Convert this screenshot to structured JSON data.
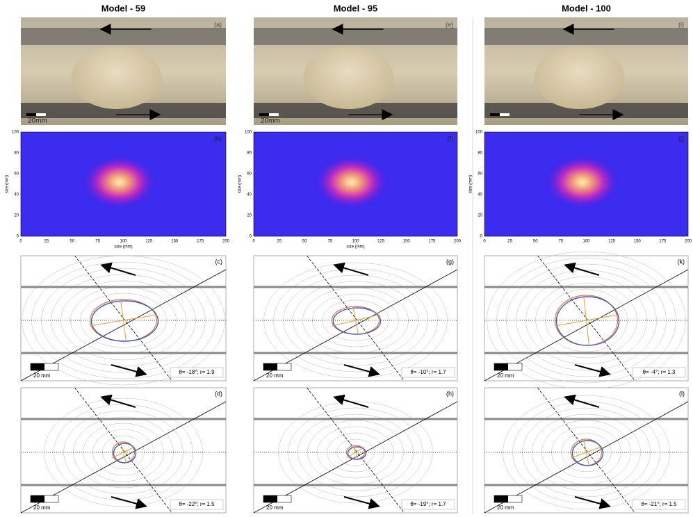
{
  "columns": [
    {
      "title": "Model - 59",
      "photo": {
        "letter": "(a)",
        "scale": "20mm"
      },
      "map": {
        "letter": "(b)",
        "xlabel": "size (mm)",
        "ylabel": "size (mm)"
      },
      "panels": [
        {
          "letter": "(c)",
          "scale": "20 mm",
          "annotation": "θ= -18°; r= 1.9"
        },
        {
          "letter": "(d)",
          "scale": "20 mm",
          "annotation": "θ= -22°; r= 1.5"
        }
      ]
    },
    {
      "title": "Model - 95",
      "photo": {
        "letter": "(e)",
        "scale": "20mm"
      },
      "map": {
        "letter": "(f)",
        "xlabel": "size (mm)",
        "ylabel": "size (mm)"
      },
      "panels": [
        {
          "letter": "(g)",
          "scale": "20 mm",
          "annotation": "θ= -10°; r= 1.7"
        },
        {
          "letter": "(h)",
          "scale": "20 mm",
          "annotation": "θ= -19°; r= 1.7"
        }
      ]
    },
    {
      "title": "Model - 100",
      "photo": {
        "letter": "(i)"
      },
      "map": {
        "letter": "(j)",
        "ylabel": "size (mm)"
      },
      "panels": [
        {
          "letter": "(k)",
          "scale": "20 mm",
          "annotation": "θ= -4°; r= 1.3"
        },
        {
          "letter": "(l)",
          "scale": "20 mm",
          "annotation": "θ= -21°; r= 1.5"
        }
      ]
    }
  ],
  "map_axes": {
    "xticks": [
      0,
      25,
      50,
      75,
      100,
      125,
      150,
      175,
      200
    ],
    "yticks": [
      0,
      20,
      40,
      60,
      80,
      100
    ]
  }
}
